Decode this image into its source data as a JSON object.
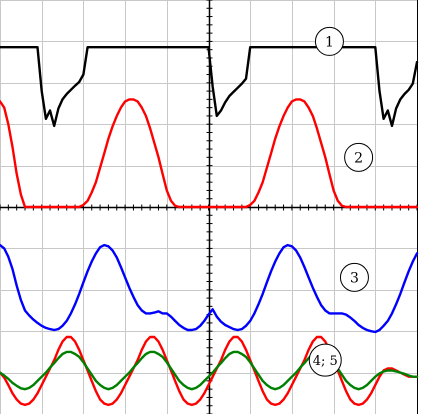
{
  "chart_data": {
    "type": "line",
    "grid": true,
    "x": [
      0,
      1,
      2,
      3,
      4,
      5,
      6,
      7,
      8,
      9,
      10,
      11,
      12,
      13,
      14,
      15,
      16,
      17,
      18,
      19,
      20,
      21,
      22,
      23,
      24,
      25,
      26,
      27,
      28,
      29,
      30,
      31,
      32,
      33,
      34,
      35,
      36,
      37,
      38,
      39,
      40,
      41,
      42,
      43,
      44,
      45,
      46,
      47,
      48,
      49,
      50,
      51,
      52,
      53,
      54,
      55,
      56,
      57,
      58,
      59,
      60,
      61,
      62,
      63,
      64,
      65,
      66,
      67,
      68,
      69,
      70,
      71,
      72,
      73,
      74,
      75,
      76,
      77,
      78,
      79,
      80,
      81,
      82,
      83,
      84,
      85,
      86,
      87,
      88,
      89,
      90,
      91,
      92,
      93,
      94,
      95,
      96,
      97,
      98,
      99,
      100
    ],
    "xlim": [
      0,
      100
    ],
    "ylim": [
      0,
      100
    ],
    "series": [
      {
        "name": "1",
        "color": "#000000",
        "values": [
          88.6,
          88.6,
          88.6,
          88.6,
          88.6,
          88.6,
          88.6,
          88.6,
          88.6,
          88.6,
          78.0,
          71.3,
          73.3,
          69.6,
          73.8,
          76.0,
          77.3,
          78.3,
          79.3,
          80.2,
          82.0,
          88.6,
          88.6,
          88.6,
          88.6,
          88.6,
          88.6,
          88.6,
          88.6,
          88.6,
          88.6,
          88.6,
          88.6,
          88.6,
          88.6,
          88.6,
          88.6,
          88.6,
          88.6,
          88.6,
          88.6,
          88.6,
          88.6,
          88.6,
          88.6,
          88.6,
          88.6,
          88.6,
          88.6,
          88.6,
          88.6,
          79.0,
          72.0,
          73.3,
          75.3,
          76.8,
          77.8,
          78.8,
          79.8,
          81.0,
          88.6,
          88.6,
          88.6,
          88.6,
          88.6,
          88.6,
          88.6,
          88.6,
          88.6,
          88.6,
          88.6,
          88.6,
          88.6,
          88.6,
          88.6,
          88.6,
          88.6,
          88.6,
          88.6,
          88.6,
          88.6,
          88.6,
          88.6,
          88.6,
          88.6,
          88.6,
          88.6,
          88.6,
          88.6,
          88.6,
          88.6,
          78.0,
          71.3,
          73.3,
          69.6,
          73.8,
          76.0,
          77.3,
          78.3,
          79.8,
          85.0
        ]
      },
      {
        "name": "2",
        "color": "#ff0000",
        "values": [
          75.5,
          74.0,
          70.0,
          64.5,
          58.0,
          53.0,
          50.0,
          50.0,
          50.0,
          50.0,
          50.0,
          50.0,
          50.0,
          50.0,
          50.0,
          50.0,
          50.0,
          50.0,
          50.0,
          50.0,
          50.5,
          51.5,
          53.5,
          56.0,
          59.5,
          63.0,
          66.5,
          69.5,
          72.0,
          74.0,
          75.5,
          76.0,
          76.0,
          75.5,
          74.0,
          72.0,
          69.0,
          65.5,
          62.0,
          58.0,
          54.0,
          51.5,
          50.3,
          50.0,
          50.0,
          50.0,
          50.0,
          50.0,
          50.0,
          50.0,
          50.0,
          50.0,
          50.0,
          50.0,
          50.0,
          50.0,
          50.0,
          50.0,
          50.0,
          50.0,
          50.5,
          51.5,
          53.5,
          56.0,
          59.5,
          63.0,
          66.5,
          69.5,
          72.0,
          74.0,
          75.5,
          76.0,
          76.0,
          75.5,
          74.0,
          72.0,
          69.0,
          65.5,
          62.0,
          58.0,
          54.0,
          51.5,
          50.3,
          50.0,
          50.0,
          50.0,
          50.0,
          50.0,
          50.0,
          50.0,
          50.0,
          50.0,
          50.0,
          50.0,
          50.0,
          50.0,
          50.0,
          50.0,
          50.0,
          50.0,
          50.0
        ]
      },
      {
        "name": "3",
        "color": "#0000ff",
        "values": [
          40.8,
          40.0,
          38.0,
          35.0,
          31.0,
          27.5,
          25.0,
          23.8,
          22.8,
          22.0,
          21.3,
          20.8,
          20.5,
          20.3,
          20.5,
          21.3,
          22.5,
          24.3,
          26.5,
          29.0,
          31.8,
          34.5,
          36.8,
          38.8,
          40.3,
          40.8,
          40.5,
          39.5,
          37.8,
          35.5,
          33.0,
          30.5,
          28.3,
          26.3,
          25.0,
          24.3,
          24.3,
          24.5,
          24.8,
          24.3,
          24.3,
          23.5,
          22.5,
          21.5,
          20.8,
          20.3,
          20.3,
          20.5,
          21.3,
          22.5,
          24.0,
          25.3,
          23.5,
          22.3,
          21.5,
          21.0,
          20.5,
          20.3,
          20.5,
          21.3,
          22.5,
          24.3,
          26.5,
          29.0,
          31.8,
          34.5,
          36.8,
          38.8,
          40.3,
          40.8,
          40.5,
          39.5,
          37.8,
          35.5,
          33.0,
          30.5,
          28.3,
          26.3,
          25.0,
          24.3,
          24.3,
          24.3,
          24.3,
          24.0,
          23.3,
          22.5,
          21.5,
          20.8,
          20.3,
          20.0,
          19.8,
          20.3,
          21.3,
          22.5,
          24.3,
          26.5,
          29.0,
          31.8,
          34.5,
          36.8,
          38.8
        ]
      },
      {
        "name": "4",
        "color": "#ff0000",
        "values": [
          10.0,
          8.8,
          7.0,
          5.0,
          3.5,
          2.5,
          2.2,
          2.5,
          3.5,
          5.0,
          7.0,
          9.0,
          11.0,
          13.0,
          15.5,
          17.5,
          18.6,
          18.6,
          17.5,
          15.5,
          13.0,
          10.5,
          8.0,
          5.5,
          3.5,
          2.5,
          2.2,
          2.5,
          3.5,
          5.0,
          7.0,
          9.0,
          11.0,
          13.0,
          15.5,
          17.5,
          18.6,
          18.6,
          17.5,
          15.5,
          13.0,
          10.5,
          8.0,
          5.5,
          3.5,
          2.5,
          2.2,
          2.5,
          3.5,
          5.0,
          7.0,
          9.0,
          11.0,
          13.0,
          15.5,
          17.5,
          18.6,
          18.6,
          17.5,
          15.5,
          13.0,
          10.5,
          8.0,
          5.5,
          3.5,
          2.5,
          2.2,
          2.5,
          3.5,
          5.0,
          7.0,
          9.0,
          11.0,
          13.0,
          15.5,
          17.5,
          18.6,
          18.6,
          17.5,
          15.5,
          13.0,
          10.5,
          8.0,
          5.5,
          3.5,
          2.5,
          2.2,
          2.5,
          3.5,
          5.0,
          7.0,
          9.0,
          10.5,
          11.0,
          11.0,
          10.5,
          10.0,
          9.5,
          9.0,
          9.0,
          9.0
        ]
      },
      {
        "name": "5",
        "color": "#008000",
        "values": [
          10.0,
          9.3,
          8.5,
          7.5,
          6.8,
          6.2,
          6.0,
          6.3,
          7.0,
          8.0,
          9.0,
          10.0,
          11.2,
          12.3,
          13.5,
          14.5,
          15.0,
          15.0,
          14.5,
          13.8,
          12.5,
          11.0,
          9.5,
          8.0,
          7.0,
          6.3,
          6.0,
          6.3,
          7.0,
          8.0,
          9.0,
          10.0,
          11.2,
          12.3,
          13.5,
          14.5,
          15.0,
          15.0,
          14.5,
          13.8,
          12.5,
          11.0,
          9.5,
          8.0,
          7.0,
          6.3,
          6.0,
          6.3,
          7.0,
          8.0,
          9.0,
          10.0,
          11.2,
          12.3,
          13.5,
          14.5,
          15.0,
          15.0,
          14.5,
          13.8,
          12.5,
          11.0,
          9.5,
          8.0,
          7.0,
          6.3,
          6.0,
          6.3,
          7.0,
          8.0,
          9.0,
          10.0,
          11.2,
          12.3,
          13.5,
          14.5,
          15.0,
          15.0,
          14.5,
          13.8,
          12.5,
          11.0,
          9.5,
          8.0,
          7.0,
          6.3,
          6.0,
          6.3,
          7.0,
          8.0,
          9.0,
          9.8,
          10.3,
          10.5,
          10.5,
          10.3,
          10.0,
          9.7,
          9.3,
          9.0,
          9.0
        ]
      }
    ],
    "labels": [
      {
        "text": "1",
        "x": 79,
        "y": 90
      },
      {
        "text": "2",
        "x": 86,
        "y": 62
      },
      {
        "text": "3",
        "x": 85,
        "y": 33
      },
      {
        "text": "4; 5",
        "x": 78,
        "y": 13
      }
    ]
  }
}
